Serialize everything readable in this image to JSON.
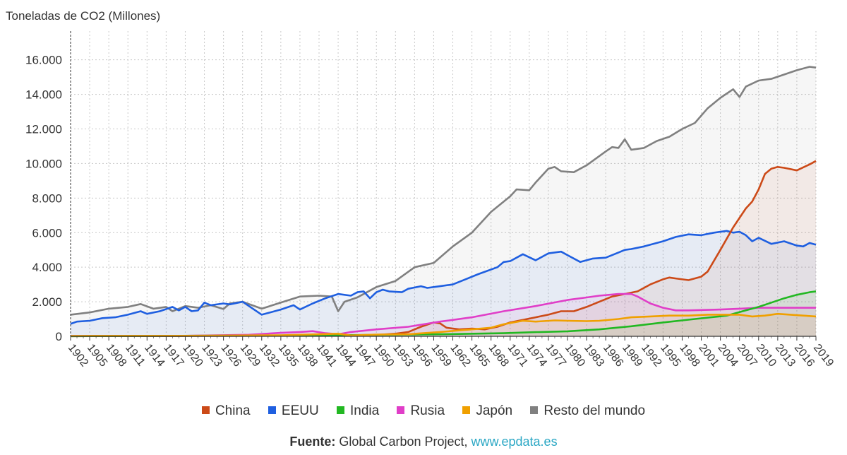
{
  "chart_data": {
    "type": "area",
    "ylabel": "Toneladas de CO2 (Millones)",
    "ylim": [
      0,
      17500
    ],
    "yticks": [
      0,
      2000,
      4000,
      6000,
      8000,
      10000,
      12000,
      14000,
      16000
    ],
    "ytick_labels": [
      "0",
      "2.000",
      "4.000",
      "6.000",
      "8.000",
      "10.000",
      "12.000",
      "14.000",
      "16.000"
    ],
    "xlim": [
      1902,
      2019
    ],
    "xticks": [
      1902,
      1905,
      1908,
      1911,
      1914,
      1917,
      1920,
      1923,
      1926,
      1929,
      1932,
      1935,
      1938,
      1941,
      1944,
      1947,
      1950,
      1953,
      1956,
      1959,
      1962,
      1965,
      1968,
      1971,
      1974,
      1977,
      1980,
      1983,
      1986,
      1989,
      1992,
      1995,
      1998,
      2001,
      2004,
      2007,
      2010,
      2013,
      2016,
      2019
    ],
    "grid": true,
    "legend_position": "bottom",
    "series": [
      {
        "name": "Resto del mundo",
        "color": "#808080",
        "points": [
          [
            1902,
            1250
          ],
          [
            1905,
            1380
          ],
          [
            1908,
            1600
          ],
          [
            1911,
            1700
          ],
          [
            1913,
            1870
          ],
          [
            1915,
            1600
          ],
          [
            1917,
            1700
          ],
          [
            1918,
            1450
          ],
          [
            1920,
            1750
          ],
          [
            1922,
            1650
          ],
          [
            1924,
            1800
          ],
          [
            1926,
            1580
          ],
          [
            1927,
            1900
          ],
          [
            1929,
            2000
          ],
          [
            1932,
            1600
          ],
          [
            1935,
            1950
          ],
          [
            1938,
            2300
          ],
          [
            1941,
            2350
          ],
          [
            1943,
            2300
          ],
          [
            1944,
            1450
          ],
          [
            1945,
            2000
          ],
          [
            1947,
            2250
          ],
          [
            1950,
            2850
          ],
          [
            1953,
            3200
          ],
          [
            1956,
            4000
          ],
          [
            1959,
            4250
          ],
          [
            1962,
            5200
          ],
          [
            1965,
            6000
          ],
          [
            1968,
            7200
          ],
          [
            1971,
            8100
          ],
          [
            1972,
            8500
          ],
          [
            1974,
            8450
          ],
          [
            1975,
            8900
          ],
          [
            1977,
            9700
          ],
          [
            1978,
            9800
          ],
          [
            1979,
            9550
          ],
          [
            1981,
            9500
          ],
          [
            1983,
            9900
          ],
          [
            1986,
            10700
          ],
          [
            1987,
            10950
          ],
          [
            1988,
            10900
          ],
          [
            1989,
            11400
          ],
          [
            1990,
            10800
          ],
          [
            1992,
            10900
          ],
          [
            1994,
            11300
          ],
          [
            1996,
            11550
          ],
          [
            1998,
            12000
          ],
          [
            2000,
            12350
          ],
          [
            2002,
            13200
          ],
          [
            2004,
            13800
          ],
          [
            2006,
            14300
          ],
          [
            2007,
            13850
          ],
          [
            2008,
            14450
          ],
          [
            2010,
            14800
          ],
          [
            2012,
            14900
          ],
          [
            2014,
            15150
          ],
          [
            2016,
            15400
          ],
          [
            2018,
            15600
          ],
          [
            2019,
            15550
          ]
        ]
      },
      {
        "name": "EEUU",
        "color": "#1f5fe0",
        "points": [
          [
            1902,
            720
          ],
          [
            1903,
            850
          ],
          [
            1905,
            900
          ],
          [
            1907,
            1050
          ],
          [
            1909,
            1100
          ],
          [
            1911,
            1250
          ],
          [
            1913,
            1450
          ],
          [
            1914,
            1300
          ],
          [
            1916,
            1450
          ],
          [
            1918,
            1700
          ],
          [
            1919,
            1500
          ],
          [
            1920,
            1700
          ],
          [
            1921,
            1450
          ],
          [
            1922,
            1500
          ],
          [
            1923,
            1950
          ],
          [
            1924,
            1800
          ],
          [
            1926,
            1900
          ],
          [
            1927,
            1850
          ],
          [
            1929,
            2000
          ],
          [
            1930,
            1750
          ],
          [
            1932,
            1250
          ],
          [
            1933,
            1350
          ],
          [
            1935,
            1550
          ],
          [
            1937,
            1800
          ],
          [
            1938,
            1550
          ],
          [
            1940,
            1900
          ],
          [
            1942,
            2200
          ],
          [
            1944,
            2450
          ],
          [
            1946,
            2350
          ],
          [
            1947,
            2550
          ],
          [
            1948,
            2600
          ],
          [
            1949,
            2200
          ],
          [
            1950,
            2550
          ],
          [
            1951,
            2700
          ],
          [
            1952,
            2600
          ],
          [
            1954,
            2550
          ],
          [
            1955,
            2750
          ],
          [
            1957,
            2900
          ],
          [
            1958,
            2800
          ],
          [
            1960,
            2900
          ],
          [
            1962,
            3000
          ],
          [
            1964,
            3300
          ],
          [
            1966,
            3600
          ],
          [
            1969,
            4000
          ],
          [
            1970,
            4300
          ],
          [
            1971,
            4350
          ],
          [
            1973,
            4750
          ],
          [
            1975,
            4400
          ],
          [
            1977,
            4800
          ],
          [
            1979,
            4900
          ],
          [
            1980,
            4700
          ],
          [
            1982,
            4300
          ],
          [
            1984,
            4500
          ],
          [
            1986,
            4550
          ],
          [
            1988,
            4850
          ],
          [
            1989,
            5000
          ],
          [
            1990,
            5050
          ],
          [
            1992,
            5200
          ],
          [
            1995,
            5500
          ],
          [
            1997,
            5750
          ],
          [
            1999,
            5900
          ],
          [
            2001,
            5850
          ],
          [
            2003,
            6000
          ],
          [
            2005,
            6100
          ],
          [
            2006,
            6000
          ],
          [
            2007,
            6050
          ],
          [
            2008,
            5850
          ],
          [
            2009,
            5500
          ],
          [
            2010,
            5700
          ],
          [
            2012,
            5350
          ],
          [
            2014,
            5500
          ],
          [
            2016,
            5250
          ],
          [
            2017,
            5200
          ],
          [
            2018,
            5400
          ],
          [
            2019,
            5300
          ]
        ]
      },
      {
        "name": "China",
        "color": "#cc4a18",
        "points": [
          [
            1902,
            10
          ],
          [
            1920,
            20
          ],
          [
            1940,
            40
          ],
          [
            1950,
            80
          ],
          [
            1953,
            150
          ],
          [
            1955,
            250
          ],
          [
            1957,
            550
          ],
          [
            1959,
            800
          ],
          [
            1960,
            750
          ],
          [
            1961,
            500
          ],
          [
            1963,
            400
          ],
          [
            1965,
            450
          ],
          [
            1967,
            400
          ],
          [
            1969,
            550
          ],
          [
            1971,
            800
          ],
          [
            1973,
            950
          ],
          [
            1975,
            1100
          ],
          [
            1977,
            1250
          ],
          [
            1979,
            1450
          ],
          [
            1981,
            1450
          ],
          [
            1983,
            1700
          ],
          [
            1985,
            2000
          ],
          [
            1987,
            2300
          ],
          [
            1989,
            2450
          ],
          [
            1991,
            2600
          ],
          [
            1993,
            3000
          ],
          [
            1995,
            3300
          ],
          [
            1996,
            3400
          ],
          [
            1997,
            3350
          ],
          [
            1999,
            3250
          ],
          [
            2001,
            3450
          ],
          [
            2002,
            3750
          ],
          [
            2004,
            5000
          ],
          [
            2006,
            6300
          ],
          [
            2008,
            7400
          ],
          [
            2009,
            7800
          ],
          [
            2010,
            8500
          ],
          [
            2011,
            9400
          ],
          [
            2012,
            9700
          ],
          [
            2013,
            9800
          ],
          [
            2014,
            9750
          ],
          [
            2016,
            9600
          ],
          [
            2018,
            9950
          ],
          [
            2019,
            10150
          ]
        ]
      },
      {
        "name": "Rusia",
        "color": "#e03ec8",
        "points": [
          [
            1902,
            20
          ],
          [
            1920,
            30
          ],
          [
            1930,
            90
          ],
          [
            1935,
            200
          ],
          [
            1938,
            250
          ],
          [
            1940,
            300
          ],
          [
            1942,
            180
          ],
          [
            1944,
            120
          ],
          [
            1946,
            250
          ],
          [
            1950,
            400
          ],
          [
            1955,
            550
          ],
          [
            1960,
            850
          ],
          [
            1965,
            1100
          ],
          [
            1970,
            1450
          ],
          [
            1975,
            1750
          ],
          [
            1980,
            2100
          ],
          [
            1983,
            2250
          ],
          [
            1985,
            2350
          ],
          [
            1988,
            2450
          ],
          [
            1990,
            2450
          ],
          [
            1991,
            2300
          ],
          [
            1993,
            1900
          ],
          [
            1995,
            1650
          ],
          [
            1997,
            1500
          ],
          [
            1999,
            1500
          ],
          [
            2001,
            1520
          ],
          [
            2004,
            1550
          ],
          [
            2007,
            1600
          ],
          [
            2010,
            1650
          ],
          [
            2013,
            1650
          ],
          [
            2016,
            1650
          ],
          [
            2019,
            1650
          ]
        ]
      },
      {
        "name": "India",
        "color": "#22b822",
        "points": [
          [
            1902,
            10
          ],
          [
            1930,
            40
          ],
          [
            1950,
            80
          ],
          [
            1960,
            120
          ],
          [
            1970,
            180
          ],
          [
            1975,
            240
          ],
          [
            1980,
            290
          ],
          [
            1985,
            400
          ],
          [
            1990,
            580
          ],
          [
            1995,
            800
          ],
          [
            2000,
            1000
          ],
          [
            2005,
            1200
          ],
          [
            2008,
            1500
          ],
          [
            2010,
            1700
          ],
          [
            2012,
            1950
          ],
          [
            2014,
            2200
          ],
          [
            2016,
            2400
          ],
          [
            2018,
            2550
          ],
          [
            2019,
            2600
          ]
        ]
      },
      {
        "name": "Japón",
        "color": "#f0a000",
        "points": [
          [
            1902,
            20
          ],
          [
            1920,
            30
          ],
          [
            1935,
            60
          ],
          [
            1940,
            110
          ],
          [
            1944,
            150
          ],
          [
            1946,
            50
          ],
          [
            1950,
            100
          ],
          [
            1955,
            120
          ],
          [
            1960,
            250
          ],
          [
            1965,
            400
          ],
          [
            1968,
            500
          ],
          [
            1970,
            700
          ],
          [
            1973,
            900
          ],
          [
            1975,
            850
          ],
          [
            1978,
            920
          ],
          [
            1980,
            900
          ],
          [
            1983,
            880
          ],
          [
            1985,
            900
          ],
          [
            1988,
            1000
          ],
          [
            1990,
            1100
          ],
          [
            1993,
            1150
          ],
          [
            1996,
            1200
          ],
          [
            1999,
            1200
          ],
          [
            2002,
            1250
          ],
          [
            2005,
            1250
          ],
          [
            2007,
            1250
          ],
          [
            2009,
            1150
          ],
          [
            2011,
            1200
          ],
          [
            2013,
            1300
          ],
          [
            2015,
            1250
          ],
          [
            2017,
            1200
          ],
          [
            2019,
            1150
          ]
        ]
      }
    ]
  },
  "legend": [
    {
      "label": "China",
      "color": "#cc4a18"
    },
    {
      "label": "EEUU",
      "color": "#1f5fe0"
    },
    {
      "label": "India",
      "color": "#22b822"
    },
    {
      "label": "Rusia",
      "color": "#e03ec8"
    },
    {
      "label": "Japón",
      "color": "#f0a000"
    },
    {
      "label": "Resto del mundo",
      "color": "#808080"
    }
  ],
  "source": {
    "label": "Fuente:",
    "text": " Global Carbon Project, ",
    "link": "www.epdata.es"
  }
}
